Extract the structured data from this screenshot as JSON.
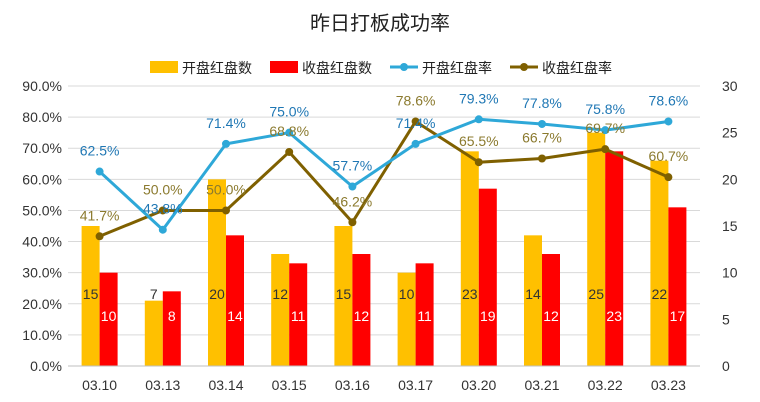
{
  "chart_data": {
    "type": "combo-bar-line",
    "title": "昨日打板成功率",
    "categories": [
      "03.10",
      "03.13",
      "03.14",
      "03.15",
      "03.16",
      "03.17",
      "03.20",
      "03.21",
      "03.22",
      "03.23"
    ],
    "series": [
      {
        "name": "开盘红盘数",
        "kind": "bar",
        "axis": "right",
        "color": "#FFC000",
        "values": [
          15,
          7,
          20,
          12,
          15,
          10,
          23,
          14,
          25,
          22
        ]
      },
      {
        "name": "收盘红盘数",
        "kind": "bar",
        "axis": "right",
        "color": "#FF0000",
        "values": [
          10,
          8,
          14,
          11,
          12,
          11,
          19,
          12,
          23,
          17
        ]
      },
      {
        "name": "开盘红盘率",
        "kind": "line",
        "axis": "left",
        "color": "#2EA8D8",
        "label_color": "#1F77B4",
        "values": [
          62.5,
          43.8,
          71.4,
          75.0,
          57.7,
          71.4,
          79.3,
          77.8,
          75.8,
          78.6
        ]
      },
      {
        "name": "收盘红盘率",
        "kind": "line",
        "axis": "left",
        "color": "#7F6000",
        "label_color": "#8B7A2E",
        "values": [
          41.7,
          50.0,
          50.0,
          68.8,
          46.2,
          78.6,
          65.5,
          66.7,
          69.7,
          60.7
        ]
      }
    ],
    "y_left": {
      "min": 0,
      "max": 90,
      "step": 10,
      "tick_labels": [
        "0.0%",
        "10.0%",
        "20.0%",
        "30.0%",
        "40.0%",
        "50.0%",
        "60.0%",
        "70.0%",
        "80.0%",
        "90.0%"
      ]
    },
    "y_right": {
      "min": 0,
      "max": 30,
      "step": 5,
      "tick_labels": [
        "0",
        "5",
        "10",
        "15",
        "20",
        "25",
        "30"
      ]
    },
    "rate_labels": {
      "open": [
        "62.5%",
        "43.8%",
        "71.4%",
        "75.0%",
        "57.7%",
        "71.4%",
        "79.3%",
        "77.8%",
        "75.8%",
        "78.6%"
      ],
      "close": [
        "41.7%",
        "50.0%",
        "50.0%",
        "68.8%",
        "46.2%",
        "78.6%",
        "65.5%",
        "66.7%",
        "69.7%",
        "60.7%"
      ]
    },
    "legend_position": "top",
    "grid": true
  }
}
